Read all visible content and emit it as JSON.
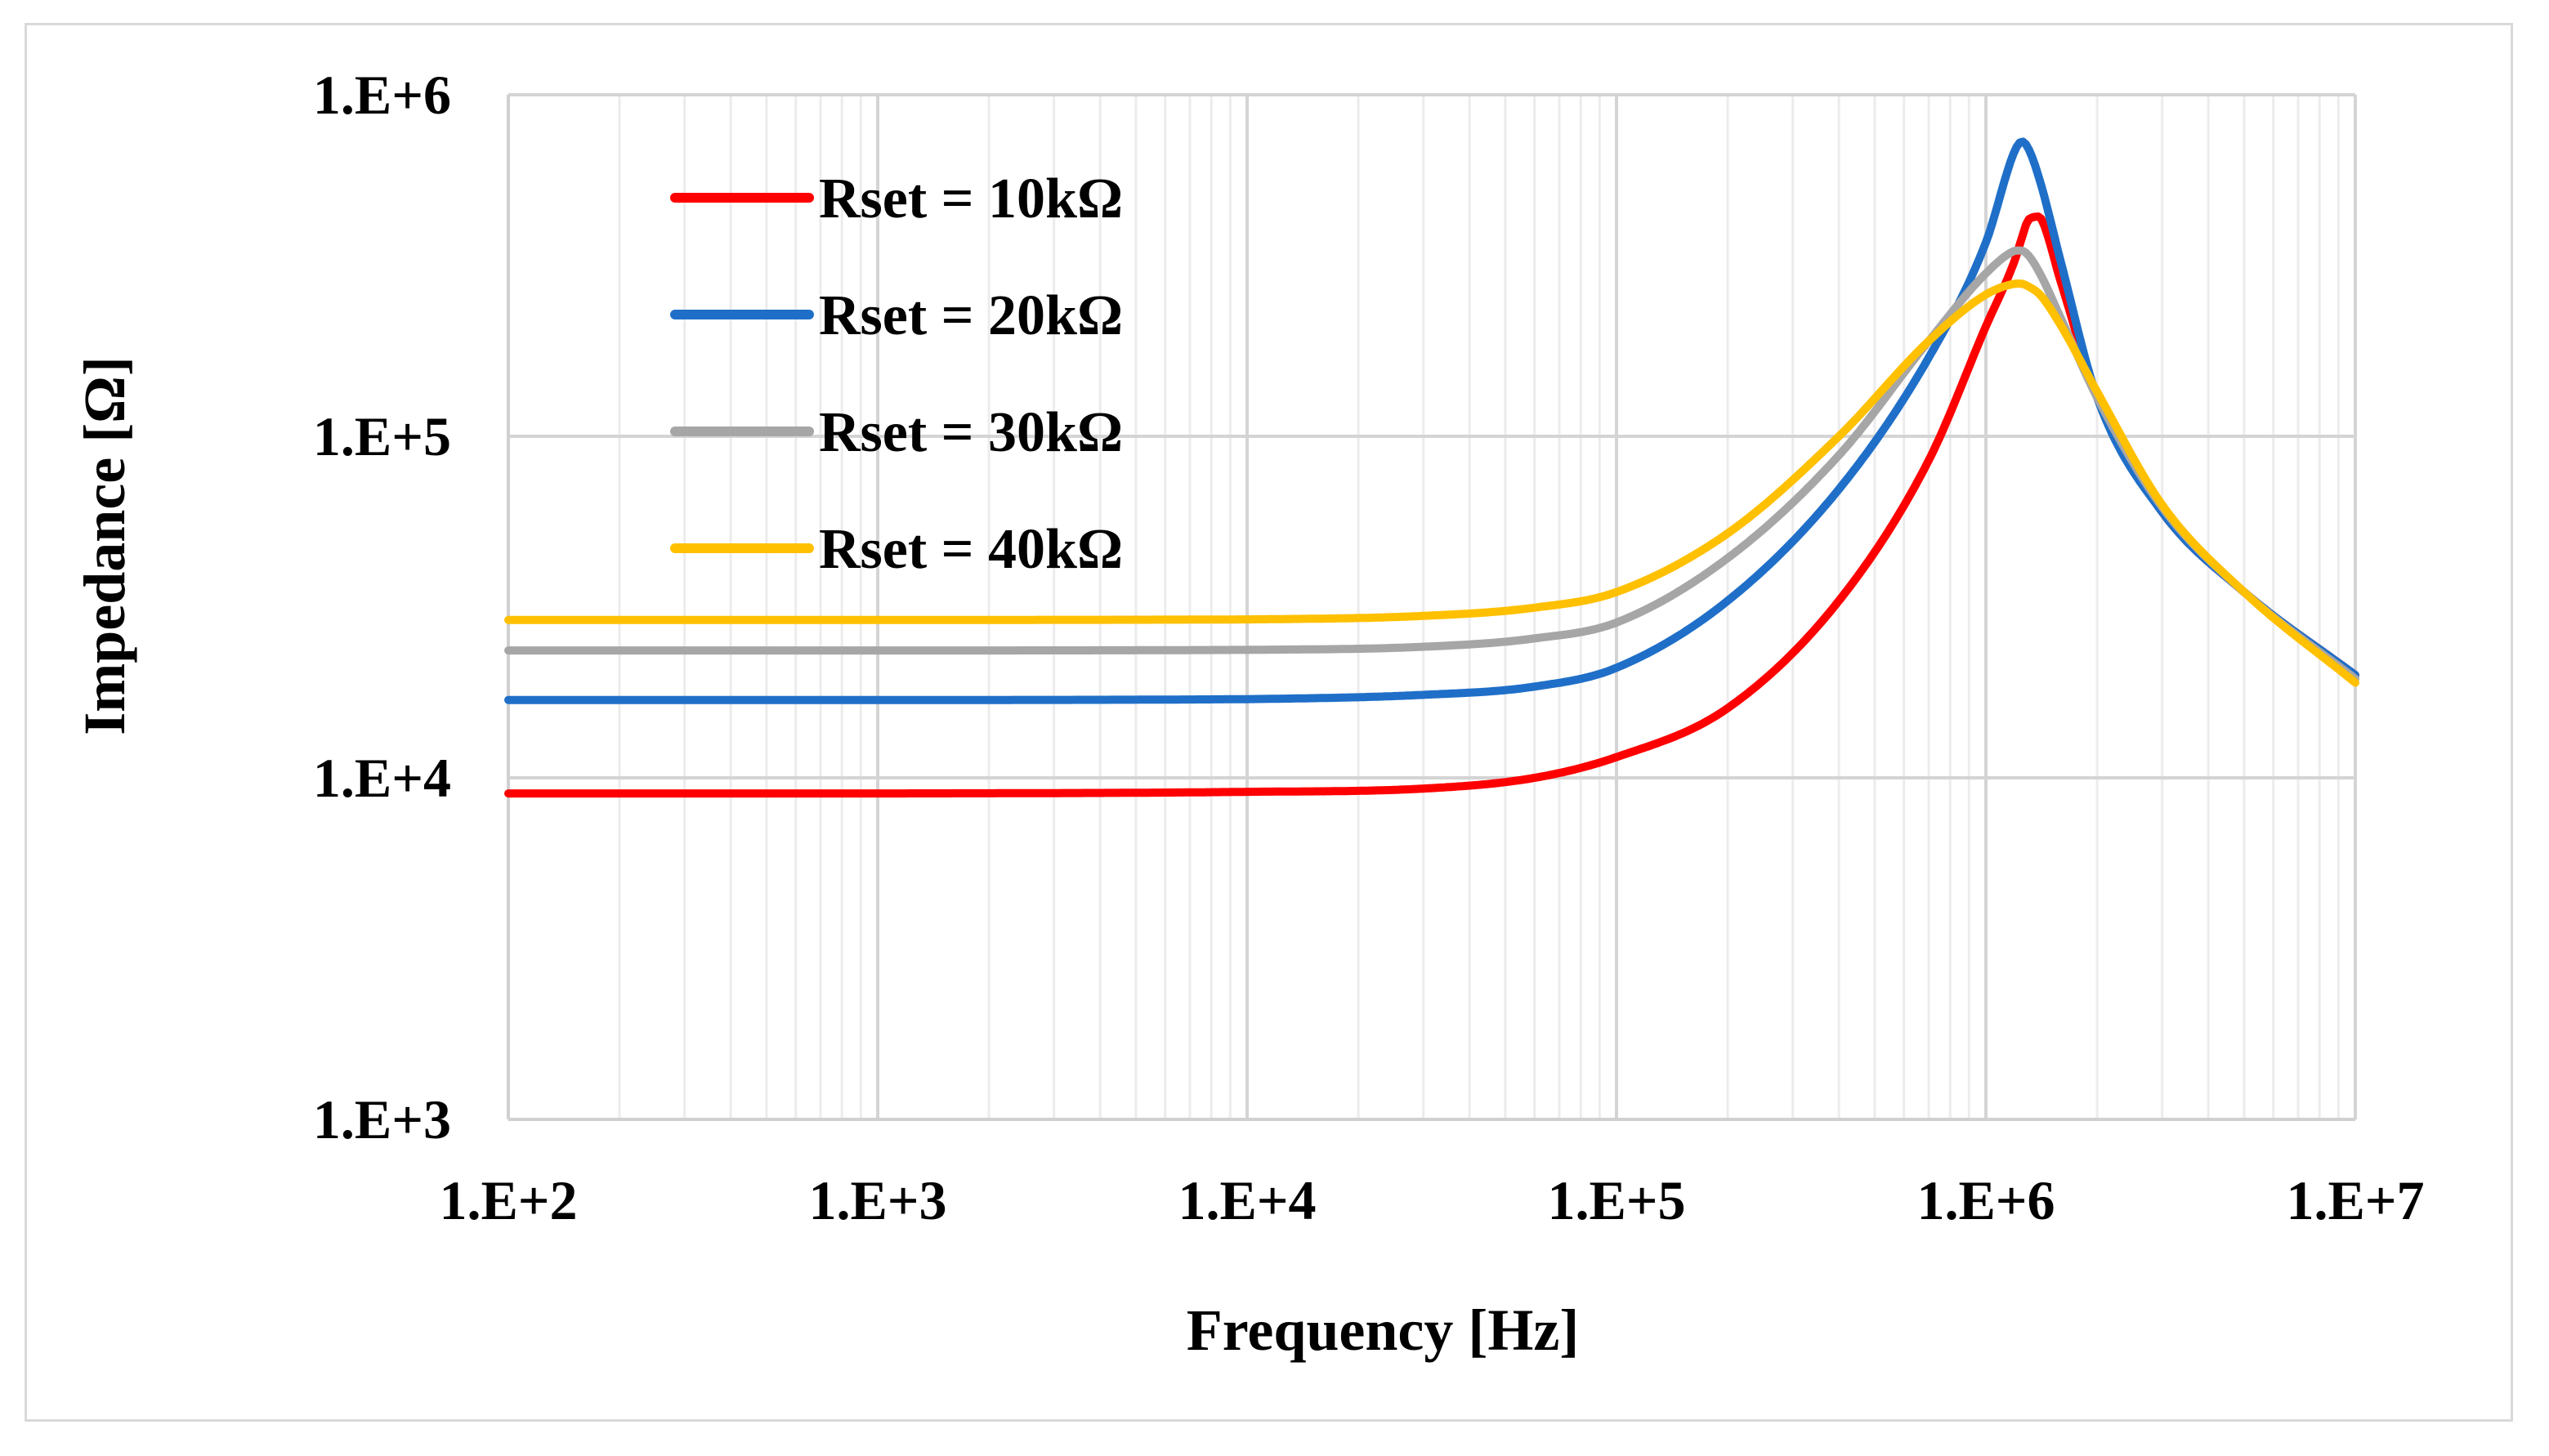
{
  "chart_data": {
    "type": "line",
    "xscale": "log",
    "yscale": "log",
    "xlabel": "Frequency [Hz]",
    "ylabel": "Impedance [Ω]",
    "xlim": [
      100,
      10000000
    ],
    "ylim": [
      1000,
      1000000
    ],
    "grid": true,
    "legend_position": "top-left",
    "xtick_labels": [
      "1.E+2",
      "1.E+3",
      "1.E+4",
      "1.E+5",
      "1.E+6",
      "1.E+7"
    ],
    "ytick_labels": [
      "1.E+3",
      "1.E+4",
      "1.E+5",
      "1.E+6"
    ],
    "x": [
      100,
      1000,
      10000,
      30000,
      60000,
      100000,
      200000,
      400000,
      700000,
      1000000,
      1200000,
      1250000,
      1300000,
      1400000,
      1600000,
      2000000,
      3000000,
      5000000,
      10000000
    ],
    "series": [
      {
        "name": "Rset = 10kΩ",
        "color": "#ff0000",
        "values": [
          9000,
          9000,
          9100,
          9300,
          10000,
          11500,
          16000,
          33000,
          85000,
          210000,
          330000,
          380000,
          430000,
          440000,
          280000,
          130000,
          60000,
          35000,
          20000
        ]
      },
      {
        "name": "Rset = 20kΩ",
        "color": "#1f6fc8",
        "values": [
          16900,
          16900,
          17000,
          17500,
          18500,
          21000,
          33000,
          70000,
          170000,
          370000,
          690000,
          730000,
          700000,
          560000,
          320000,
          130000,
          60000,
          35000,
          20000
        ]
      },
      {
        "name": "Rset = 30kΩ",
        "color": "#a6a6a6",
        "values": [
          23600,
          23600,
          23700,
          24200,
          25600,
          28500,
          44000,
          88000,
          190000,
          300000,
          350000,
          350000,
          340000,
          300000,
          220000,
          130000,
          62000,
          35000,
          19500
        ]
      },
      {
        "name": "Rset = 40kΩ",
        "color": "#ffc000",
        "values": [
          29000,
          29000,
          29100,
          29800,
          31500,
          35000,
          52000,
          100000,
          190000,
          260000,
          280000,
          280000,
          275000,
          260000,
          210000,
          135000,
          63000,
          35000,
          19000
        ]
      }
    ]
  }
}
